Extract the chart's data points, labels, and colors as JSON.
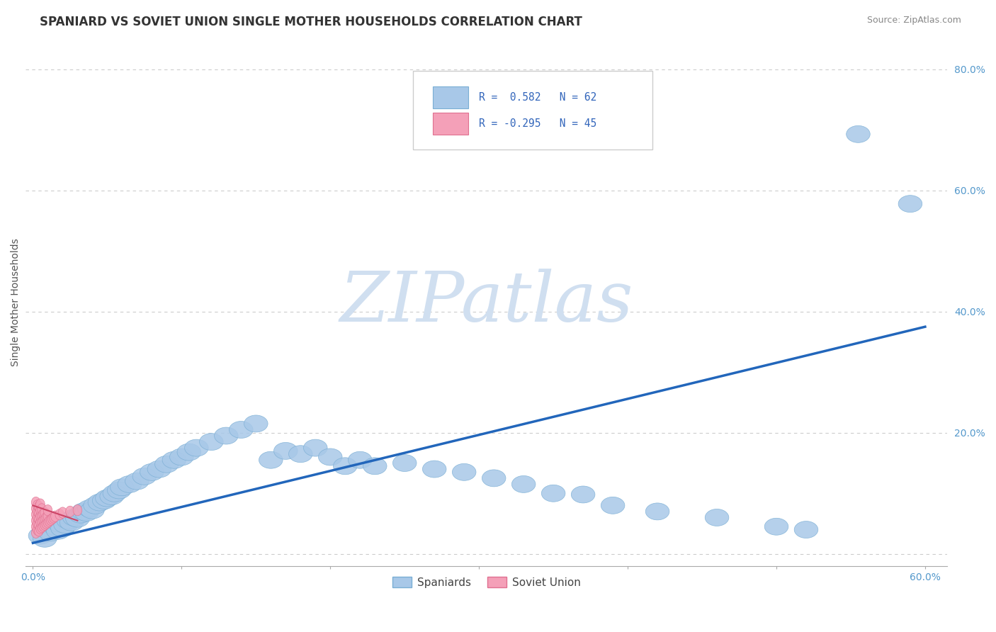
{
  "title": "SPANIARD VS SOVIET UNION SINGLE MOTHER HOUSEHOLDS CORRELATION CHART",
  "source": "Source: ZipAtlas.com",
  "ylabel": "Single Mother Households",
  "yticks": [
    0.0,
    0.2,
    0.4,
    0.6,
    0.8
  ],
  "ytick_labels": [
    "",
    "20.0%",
    "40.0%",
    "60.0%",
    "80.0%"
  ],
  "xlim": [
    -0.005,
    0.615
  ],
  "ylim": [
    -0.02,
    0.85
  ],
  "blue_color": "#a8c8e8",
  "blue_edge": "#7aaed4",
  "pink_color": "#f4a0b8",
  "pink_edge": "#e07090",
  "trend_blue": "#2266bb",
  "trend_pink": "#cc4466",
  "watermark": "ZIPatlas",
  "watermark_color": "#d0dff0",
  "title_fontsize": 12,
  "axis_label_fontsize": 10,
  "tick_fontsize": 10,
  "background_color": "#ffffff",
  "grid_color": "#cccccc",
  "spaniards_x": [
    0.005,
    0.008,
    0.01,
    0.012,
    0.015,
    0.017,
    0.018,
    0.02,
    0.022,
    0.024,
    0.026,
    0.028,
    0.03,
    0.032,
    0.034,
    0.036,
    0.038,
    0.04,
    0.042,
    0.045,
    0.048,
    0.05,
    0.053,
    0.055,
    0.058,
    0.06,
    0.065,
    0.07,
    0.075,
    0.08,
    0.085,
    0.09,
    0.095,
    0.1,
    0.105,
    0.11,
    0.12,
    0.13,
    0.14,
    0.15,
    0.16,
    0.17,
    0.18,
    0.19,
    0.2,
    0.21,
    0.22,
    0.23,
    0.25,
    0.27,
    0.29,
    0.31,
    0.33,
    0.35,
    0.37,
    0.39,
    0.42,
    0.46,
    0.5,
    0.52,
    0.555,
    0.59
  ],
  "spaniards_y": [
    0.03,
    0.025,
    0.04,
    0.035,
    0.045,
    0.038,
    0.05,
    0.042,
    0.048,
    0.055,
    0.052,
    0.06,
    0.058,
    0.065,
    0.07,
    0.068,
    0.075,
    0.072,
    0.08,
    0.085,
    0.088,
    0.092,
    0.095,
    0.1,
    0.105,
    0.11,
    0.115,
    0.12,
    0.128,
    0.135,
    0.14,
    0.148,
    0.155,
    0.16,
    0.168,
    0.175,
    0.185,
    0.195,
    0.205,
    0.215,
    0.155,
    0.17,
    0.165,
    0.175,
    0.16,
    0.145,
    0.155,
    0.145,
    0.15,
    0.14,
    0.135,
    0.125,
    0.115,
    0.1,
    0.098,
    0.08,
    0.07,
    0.06,
    0.045,
    0.04,
    0.693,
    0.578
  ],
  "soviet_x": [
    0.002,
    0.002,
    0.002,
    0.002,
    0.002,
    0.002,
    0.003,
    0.003,
    0.003,
    0.003,
    0.003,
    0.004,
    0.004,
    0.004,
    0.004,
    0.004,
    0.005,
    0.005,
    0.005,
    0.005,
    0.005,
    0.006,
    0.006,
    0.006,
    0.006,
    0.007,
    0.007,
    0.007,
    0.008,
    0.008,
    0.008,
    0.009,
    0.009,
    0.01,
    0.01,
    0.01,
    0.011,
    0.012,
    0.013,
    0.014,
    0.015,
    0.018,
    0.02,
    0.025,
    0.03
  ],
  "soviet_y": [
    0.035,
    0.045,
    0.055,
    0.065,
    0.075,
    0.085,
    0.04,
    0.05,
    0.06,
    0.07,
    0.08,
    0.038,
    0.048,
    0.058,
    0.068,
    0.078,
    0.042,
    0.052,
    0.062,
    0.072,
    0.082,
    0.044,
    0.054,
    0.064,
    0.074,
    0.046,
    0.056,
    0.066,
    0.048,
    0.058,
    0.068,
    0.05,
    0.06,
    0.052,
    0.062,
    0.072,
    0.054,
    0.056,
    0.058,
    0.06,
    0.062,
    0.065,
    0.068,
    0.07,
    0.072
  ],
  "blue_trend_x": [
    0.0,
    0.6
  ],
  "blue_trend_y": [
    0.018,
    0.375
  ],
  "pink_trend_x": [
    0.0,
    0.03
  ],
  "pink_trend_y": [
    0.08,
    0.055
  ]
}
